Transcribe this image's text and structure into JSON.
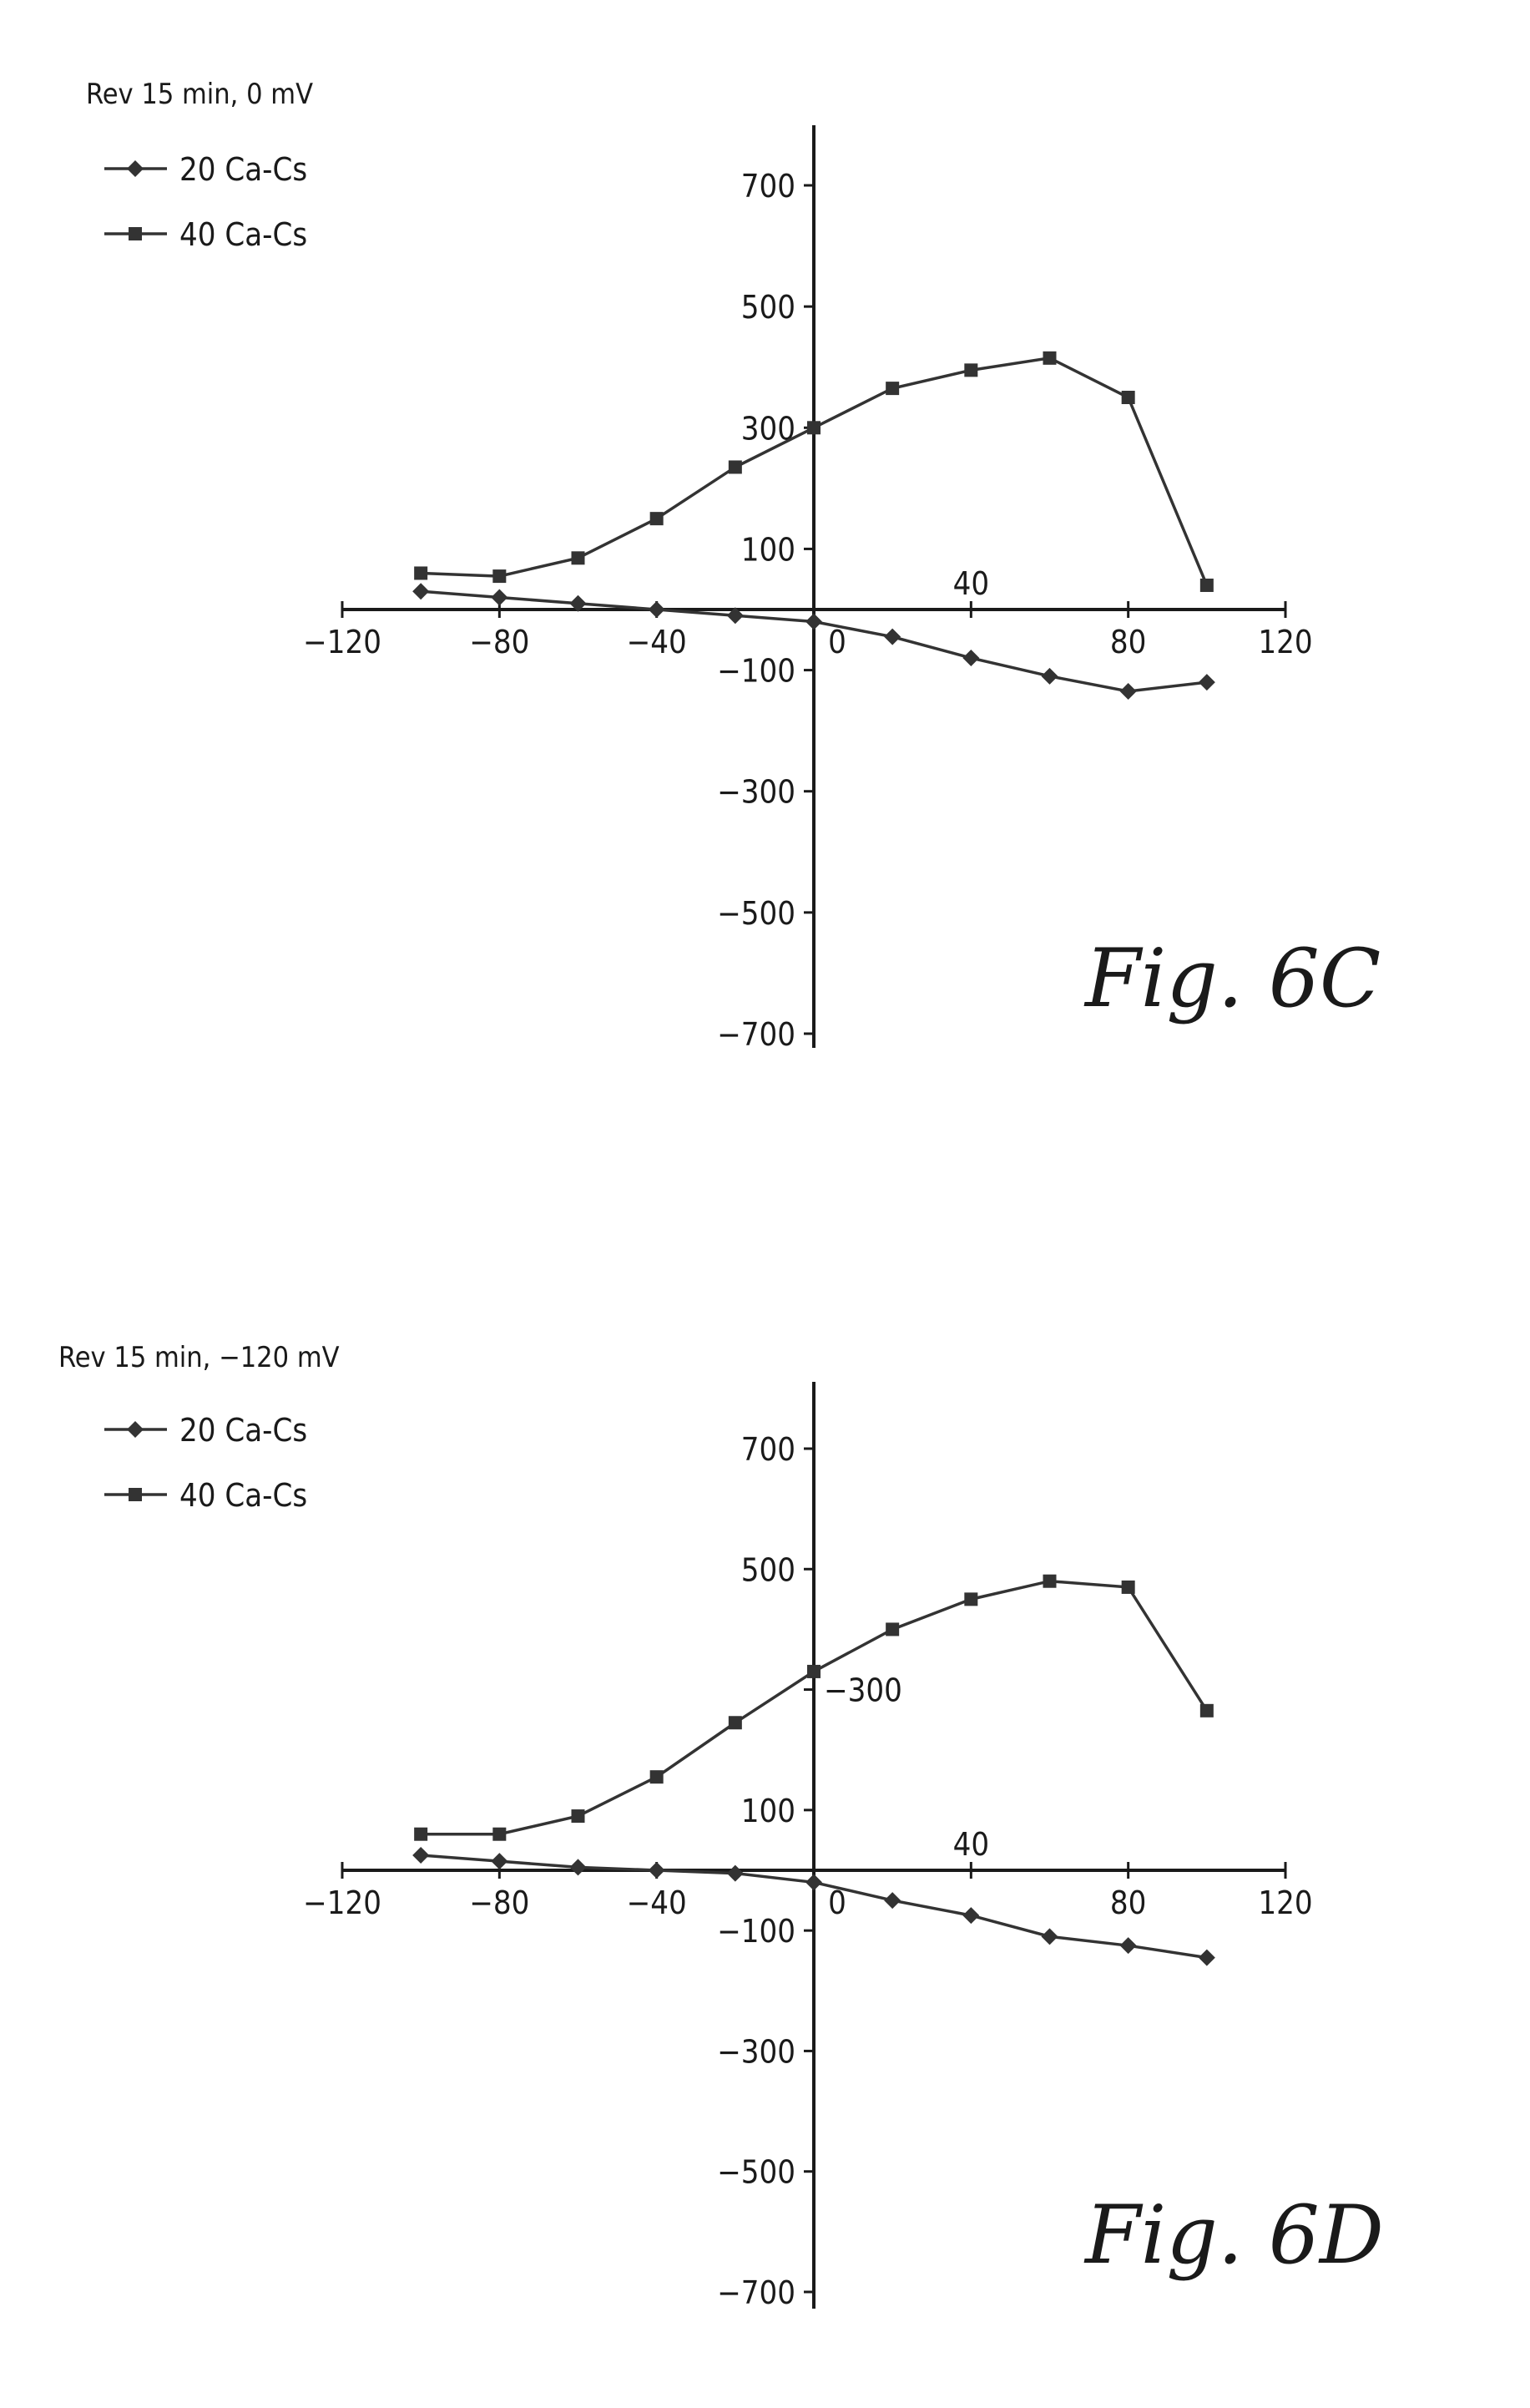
{
  "chart_data": [
    {
      "type": "line",
      "legend_title": "Rev 15 min, 0 mV",
      "xlim": [
        -120,
        120
      ],
      "ylim": [
        -700,
        800
      ],
      "x_ticks": [
        -120,
        -80,
        -40,
        0,
        40,
        80,
        120
      ],
      "y_ticks": [
        700,
        500,
        300,
        100,
        -100,
        -300,
        -500,
        -700
      ],
      "x_tick_labels": [
        "−120",
        "−80",
        "−40",
        "0",
        "40",
        "80",
        "120"
      ],
      "y_tick_labels": [
        "700",
        "500",
        "300",
        "100",
        "−100",
        "−300",
        "−500",
        "−700"
      ],
      "x": [
        -100,
        -80,
        -60,
        -40,
        -20,
        0,
        20,
        40,
        60,
        80,
        100
      ],
      "series": [
        {
          "name": "20 Ca-Cs",
          "marker": "diamond",
          "values": [
            30,
            20,
            10,
            0,
            -10,
            -20,
            -45,
            -80,
            -110,
            -135,
            -120
          ]
        },
        {
          "name": "40 Ca-Cs",
          "marker": "square",
          "values": [
            60,
            55,
            85,
            150,
            235,
            300,
            365,
            395,
            415,
            350,
            40
          ]
        }
      ],
      "legend_placement": "top-left",
      "grid": false,
      "caption": "Fig.  6C"
    },
    {
      "type": "line",
      "legend_title": "Rev 15 min, −120 mV",
      "xlim": [
        -120,
        120
      ],
      "ylim": [
        -700,
        800
      ],
      "x_ticks": [
        -120,
        -80,
        -40,
        0,
        40,
        80,
        120
      ],
      "y_ticks": [
        700,
        500,
        300,
        100,
        -100,
        -300,
        -500,
        -700
      ],
      "x_tick_labels": [
        "−120",
        "−80",
        "−40",
        "0",
        "40",
        "80",
        "120"
      ],
      "y_tick_labels": [
        "700",
        "500",
        "−300",
        "100",
        "−100",
        "−300",
        "−500",
        "−700"
      ],
      "x": [
        -100,
        -80,
        -60,
        -40,
        -20,
        0,
        20,
        40,
        60,
        80,
        100
      ],
      "series": [
        {
          "name": "20 Ca-Cs",
          "marker": "diamond",
          "values": [
            25,
            15,
            5,
            0,
            -5,
            -20,
            -50,
            -75,
            -110,
            -125,
            -145
          ]
        },
        {
          "name": "40 Ca-Cs",
          "marker": "square",
          "values": [
            60,
            60,
            90,
            155,
            245,
            330,
            400,
            450,
            480,
            470,
            265
          ]
        }
      ],
      "legend_placement": "top-left",
      "grid": false,
      "caption": "Fig.  6D"
    }
  ]
}
